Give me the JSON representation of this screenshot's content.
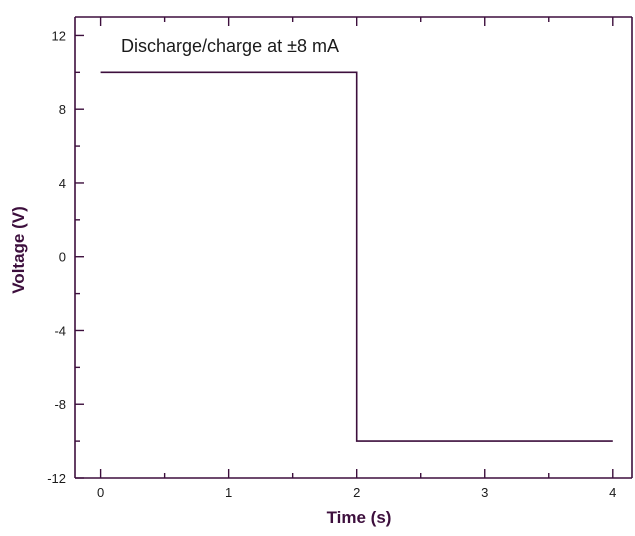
{
  "chart_data": {
    "type": "line",
    "title": "",
    "xlabel": "Time (s)",
    "ylabel": "Voltage (V)",
    "xlim": [
      -0.2,
      4.15
    ],
    "ylim": [
      -12,
      13
    ],
    "x_ticks": [
      0,
      1,
      2,
      3,
      4
    ],
    "x_tick_labels": [
      "0",
      "1",
      "2",
      "3",
      "4"
    ],
    "y_ticks": [
      -12,
      -8,
      -4,
      0,
      4,
      8,
      12
    ],
    "y_tick_labels": [
      "-12",
      "-8",
      "-4",
      "0",
      "4",
      "8",
      "12"
    ],
    "annotation": "Discharge/charge at ±8 mA",
    "grid": false,
    "series": [
      {
        "x": [
          0,
          2,
          2,
          4
        ],
        "y": [
          10,
          10,
          -10,
          -10
        ],
        "color": "#3d0f3d"
      }
    ]
  }
}
